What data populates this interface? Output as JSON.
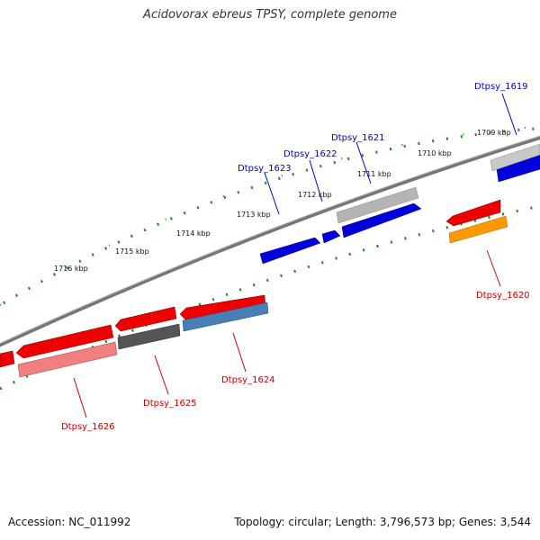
{
  "title": "Acidovorax ebreus TPSY, complete genome",
  "accession": "Accession: NC_011992",
  "topology_summary": "Topology: circular; Length: 3,796,573 bp; Genes: 3,544",
  "colors": {
    "backbone": "#808080",
    "tick_dots": "#1f8a1f",
    "plus_strand_label": "#0000cc",
    "minus_strand_label": "#cc0000"
  },
  "scale_ticks": [
    "1709 kbp",
    "1710 kbp",
    "1711 kbp",
    "1712 kbp",
    "1713 kbp",
    "1714 kbp",
    "1715 kbp",
    "1716 kbp"
  ],
  "genes": [
    {
      "label": "Dtpsy_1619",
      "strand": "plus",
      "fill": "#0000dd",
      "icon": "gene-arrow-right-icon"
    },
    {
      "label": "Dtpsy_1621",
      "strand": "plus",
      "fill": "#0000dd",
      "icon": "gene-arrow-right-icon"
    },
    {
      "label": "Dtpsy_1622",
      "strand": "plus",
      "fill": "#0000dd",
      "icon": "gene-arrow-right-icon"
    },
    {
      "label": "Dtpsy_1623",
      "strand": "plus",
      "fill": "#0000dd",
      "icon": "gene-arrow-right-icon"
    },
    {
      "label": "Dtpsy_1620",
      "strand": "minus",
      "fill": "#ee0000",
      "icon": "gene-arrow-left-icon"
    },
    {
      "label": "Dtpsy_1624",
      "strand": "minus",
      "fill": "#ee0000",
      "icon": "gene-arrow-left-icon"
    },
    {
      "label": "Dtpsy_1625",
      "strand": "minus",
      "fill": "#ee0000",
      "icon": "gene-arrow-left-icon"
    },
    {
      "label": "Dtpsy_1626",
      "strand": "minus",
      "fill": "#ee0000",
      "icon": "gene-arrow-left-icon"
    }
  ],
  "cog_tracks": [
    {
      "name": "cog-1619",
      "fill": "#c8c8c8"
    },
    {
      "name": "cog-1621",
      "fill": "#b4b4b4"
    },
    {
      "name": "cog-1620",
      "fill": "#ff9900"
    },
    {
      "name": "cog-1624",
      "fill": "#4a7fb5"
    },
    {
      "name": "cog-1625",
      "fill": "#555555"
    },
    {
      "name": "cog-1626",
      "fill": "#f08080"
    }
  ]
}
